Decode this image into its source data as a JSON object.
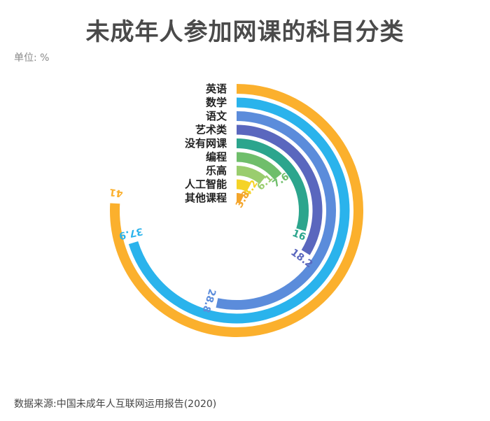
{
  "header": {
    "title": "未成年人参加网课的科目分类",
    "unit": "单位: %"
  },
  "footer": {
    "source": "数据来源:中国未成年人互联网运用报告(2020)"
  },
  "chart_data": {
    "type": "radial-bar",
    "unit": "%",
    "categories": [
      "英语",
      "数学",
      "语文",
      "艺术类",
      "没有网课",
      "编程",
      "乐高",
      "人工智能",
      "其他课程"
    ],
    "values": [
      41,
      37.9,
      28.8,
      18.2,
      16,
      7.6,
      6.1,
      4.2,
      3.8
    ],
    "value_labels": [
      "41",
      "37.9",
      "28.8",
      "18.2",
      "16",
      "7.6",
      "6.1",
      "4.2",
      "3.8"
    ],
    "colors": [
      "#FBB02D",
      "#2AB3EC",
      "#5B8CDB",
      "#5A67BE",
      "#2CA58D",
      "#6FBE6B",
      "#9ACD6E",
      "#F5D327",
      "#F4A52B"
    ],
    "axis_max": 54,
    "grid": false,
    "legend": "none"
  }
}
